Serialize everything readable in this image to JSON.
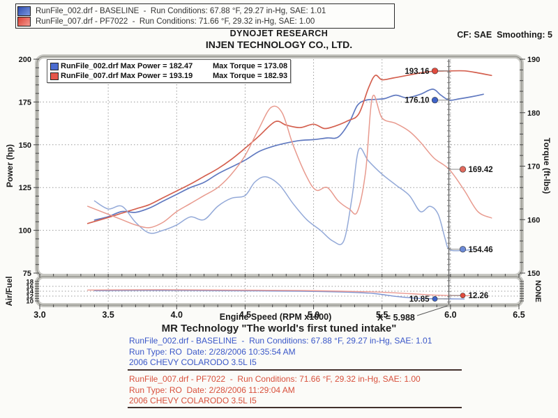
{
  "titles": {
    "research": "DYNOJET RESEARCH",
    "company": "INJEN TECHNOLOGY CO., LTD.",
    "cf_smoothing": "CF: SAE  Smoothing: 5"
  },
  "top_legend": {
    "runs": [
      {
        "label": "RunFile_002.drf - BASELINE  -  Run Conditions: 67.88 °F, 29.27 in-Hg, SAE: 1.01",
        "swatch_from": "#2f4cae",
        "swatch_to": "#7a97e0"
      },
      {
        "label": "RunFile_007.drf - PF7022  -  Run Conditions: 71.66 °F, 29.32 in-Hg, SAE: 1.00",
        "swatch_from": "#d93f33",
        "swatch_to": "#f59a93"
      }
    ]
  },
  "max_legend": {
    "rows": [
      {
        "file_and_power": "RunFile_002.drf Max Power = 182.47",
        "torque": "Max Torque = 173.08",
        "swatch": "#4a6bd0"
      },
      {
        "file_and_power": "RunFile_007.drf Max Power = 193.19",
        "torque": "Max Torque = 182.93",
        "swatch": "#e5564a"
      }
    ]
  },
  "footer": {
    "tagline": "MR Technology \"The world's first tuned intake\"",
    "xlabel": "Engine Speed (RPM x1000)",
    "blocks": [
      {
        "id": "baseline-block",
        "color": "#3a57c8",
        "lines": [
          "RunFile_002.drf - BASELINE  -  Run Conditions: 67.88 °F, 29.27 in-Hg, SAE: 1.01",
          "Run Type: RO  Date: 2/28/2006 10:35:54 AM",
          "2006 CHEVY COLARODO 3.5L I5"
        ]
      },
      {
        "id": "pf7022-block",
        "color": "#d8503c",
        "lines": [
          "RunFile_007.drf - PF7022  -  Run Conditions: 71.66 °F, 29.32 in-Hg, SAE: 1.00",
          "Run Type: RO  Date: 2/28/2006 11:29:04 AM",
          "2006 CHEVY COLARODO 3.5L I5"
        ]
      }
    ]
  },
  "chart_data": {
    "type": "line",
    "grid": true,
    "axes": {
      "x": {
        "label": "Engine Speed (RPM x1000)",
        "min": 3.0,
        "max": 6.5,
        "major": 0.5,
        "minor": 0.1,
        "tick_labels": [
          "3.0",
          "3.5",
          "4.0",
          "4.5",
          "5.0",
          "5.5",
          "6.0",
          "6.5"
        ]
      },
      "power": {
        "label": "Power (hp)",
        "min": 75,
        "max": 200,
        "major": 25,
        "minor": 5,
        "tick_labels": [
          "75",
          "100",
          "125",
          "150",
          "175",
          "200"
        ]
      },
      "torque": {
        "label": "Torque (ft-lbs)",
        "min": 150,
        "max": 190,
        "major": 10,
        "minor": 2,
        "tick_labels": [
          "150",
          "160",
          "170",
          "180",
          "190"
        ]
      },
      "af": {
        "label": "Air/Fuel",
        "right_label": "NONE",
        "min": 10,
        "max": 18,
        "major": 2,
        "minor": 1,
        "tick_labels": [
          "10",
          "12",
          "14",
          "16",
          "18"
        ]
      }
    },
    "series": [
      {
        "name": "power-baseline",
        "axis": "power",
        "color": "#6079c0",
        "points": [
          [
            3.4,
            106
          ],
          [
            3.5,
            108
          ],
          [
            3.6,
            111
          ],
          [
            3.7,
            110.5
          ],
          [
            3.8,
            113
          ],
          [
            3.9,
            117
          ],
          [
            4.0,
            121
          ],
          [
            4.1,
            125
          ],
          [
            4.2,
            128
          ],
          [
            4.3,
            133
          ],
          [
            4.4,
            137
          ],
          [
            4.5,
            141
          ],
          [
            4.6,
            146
          ],
          [
            4.7,
            149
          ],
          [
            4.8,
            151
          ],
          [
            4.9,
            152.5
          ],
          [
            5.0,
            153
          ],
          [
            5.1,
            154
          ],
          [
            5.18,
            154.5
          ],
          [
            5.26,
            163
          ],
          [
            5.32,
            173
          ],
          [
            5.38,
            176
          ],
          [
            5.45,
            176.5
          ],
          [
            5.52,
            177
          ],
          [
            5.6,
            179
          ],
          [
            5.68,
            177.5
          ],
          [
            5.78,
            179.5
          ],
          [
            5.87,
            182.5
          ],
          [
            5.93,
            179
          ],
          [
            5.99,
            176.1
          ],
          [
            6.06,
            176.8
          ],
          [
            6.15,
            178
          ],
          [
            6.24,
            179.5
          ]
        ]
      },
      {
        "name": "power-pf7022",
        "axis": "power",
        "color": "#d4604f",
        "points": [
          [
            3.35,
            104
          ],
          [
            3.5,
            107.5
          ],
          [
            3.6,
            110
          ],
          [
            3.7,
            112.5
          ],
          [
            3.8,
            115
          ],
          [
            3.9,
            119
          ],
          [
            4.0,
            123
          ],
          [
            4.1,
            127
          ],
          [
            4.2,
            131.5
          ],
          [
            4.3,
            136
          ],
          [
            4.4,
            141.5
          ],
          [
            4.5,
            148
          ],
          [
            4.6,
            155
          ],
          [
            4.72,
            163.5
          ],
          [
            4.8,
            161.5
          ],
          [
            4.9,
            160
          ],
          [
            5.0,
            162
          ],
          [
            5.08,
            159.5
          ],
          [
            5.16,
            161
          ],
          [
            5.25,
            164
          ],
          [
            5.33,
            168
          ],
          [
            5.4,
            183
          ],
          [
            5.45,
            190.5
          ],
          [
            5.5,
            188
          ],
          [
            5.58,
            189
          ],
          [
            5.68,
            190.5
          ],
          [
            5.78,
            192
          ],
          [
            5.88,
            193
          ],
          [
            5.99,
            193.16
          ],
          [
            6.1,
            193.19
          ],
          [
            6.2,
            192
          ],
          [
            6.3,
            190.5
          ]
        ]
      },
      {
        "name": "torque-baseline",
        "axis": "torque",
        "color": "#93a9d8",
        "points": [
          [
            3.4,
            163.5
          ],
          [
            3.5,
            162
          ],
          [
            3.6,
            162.5
          ],
          [
            3.7,
            159.5
          ],
          [
            3.8,
            157.5
          ],
          [
            3.9,
            158
          ],
          [
            4.0,
            159
          ],
          [
            4.1,
            160.5
          ],
          [
            4.2,
            160
          ],
          [
            4.3,
            162.5
          ],
          [
            4.4,
            164
          ],
          [
            4.5,
            164.5
          ],
          [
            4.57,
            167
          ],
          [
            4.65,
            168
          ],
          [
            4.75,
            166.5
          ],
          [
            4.85,
            163
          ],
          [
            4.95,
            160
          ],
          [
            5.05,
            158
          ],
          [
            5.14,
            156
          ],
          [
            5.22,
            156
          ],
          [
            5.28,
            164
          ],
          [
            5.33,
            173.08
          ],
          [
            5.4,
            171
          ],
          [
            5.5,
            168.5
          ],
          [
            5.6,
            166.5
          ],
          [
            5.7,
            164.5
          ],
          [
            5.78,
            161.5
          ],
          [
            5.85,
            162.5
          ],
          [
            5.91,
            161
          ],
          [
            5.96,
            156.5
          ],
          [
            5.99,
            154.46
          ],
          [
            6.07,
            154.2
          ],
          [
            6.16,
            154.4
          ]
        ]
      },
      {
        "name": "torque-pf7022",
        "axis": "torque",
        "color": "#e89a8e",
        "points": [
          [
            3.35,
            162.5
          ],
          [
            3.5,
            161
          ],
          [
            3.6,
            160
          ],
          [
            3.7,
            159
          ],
          [
            3.8,
            158.5
          ],
          [
            3.9,
            159.5
          ],
          [
            4.0,
            161.5
          ],
          [
            4.1,
            163
          ],
          [
            4.2,
            164.5
          ],
          [
            4.3,
            166
          ],
          [
            4.4,
            168.5
          ],
          [
            4.5,
            172
          ],
          [
            4.6,
            177
          ],
          [
            4.69,
            181
          ],
          [
            4.77,
            180
          ],
          [
            4.85,
            174
          ],
          [
            4.95,
            168
          ],
          [
            5.02,
            165.5
          ],
          [
            5.1,
            166
          ],
          [
            5.18,
            163.5
          ],
          [
            5.26,
            162
          ],
          [
            5.32,
            161.5
          ],
          [
            5.38,
            169
          ],
          [
            5.43,
            182.93
          ],
          [
            5.5,
            179
          ],
          [
            5.6,
            178
          ],
          [
            5.7,
            176.5
          ],
          [
            5.78,
            174.5
          ],
          [
            5.88,
            171.5
          ],
          [
            5.99,
            169.42
          ],
          [
            6.1,
            165.5
          ],
          [
            6.2,
            161.5
          ],
          [
            6.3,
            160.3
          ]
        ]
      },
      {
        "name": "af-baseline",
        "axis": "af",
        "color": "#7c93d2",
        "points": [
          [
            3.4,
            14.2
          ],
          [
            3.7,
            14.3
          ],
          [
            4.0,
            14.3
          ],
          [
            4.3,
            14.2
          ],
          [
            4.6,
            14.1
          ],
          [
            4.9,
            14.0
          ],
          [
            5.1,
            13.8
          ],
          [
            5.3,
            13.5
          ],
          [
            5.45,
            13.0
          ],
          [
            5.6,
            11.9
          ],
          [
            5.75,
            11.1
          ],
          [
            5.9,
            10.9
          ],
          [
            5.99,
            10.85
          ],
          [
            6.1,
            10.8
          ]
        ]
      },
      {
        "name": "af-pf7022",
        "axis": "af",
        "color": "#ec9a92",
        "points": [
          [
            3.35,
            14.5
          ],
          [
            3.7,
            14.6
          ],
          [
            4.0,
            14.6
          ],
          [
            4.3,
            14.5
          ],
          [
            4.6,
            14.4
          ],
          [
            4.9,
            14.3
          ],
          [
            5.1,
            14.1
          ],
          [
            5.3,
            13.9
          ],
          [
            5.5,
            13.6
          ],
          [
            5.7,
            13.0
          ],
          [
            5.85,
            12.5
          ],
          [
            5.99,
            12.26
          ],
          [
            6.15,
            12.2
          ]
        ]
      }
    ],
    "cursor": {
      "x": 5.988,
      "label": "X = 5.988",
      "markers": [
        {
          "name": "pf7022-power-at-cursor",
          "axis": "power",
          "value": 193.16,
          "label": "193.16",
          "color": "#e04b3e",
          "side": "left"
        },
        {
          "name": "baseline-power-at-cursor",
          "axis": "power",
          "value": 176.1,
          "label": "176.10",
          "color": "#3f63c8",
          "side": "left"
        },
        {
          "name": "pf7022-torque-at-cursor",
          "axis": "torque",
          "value": 169.42,
          "label": "169.42",
          "color": "#e06a5e",
          "side": "right"
        },
        {
          "name": "baseline-torque-at-cursor",
          "axis": "torque",
          "value": 154.46,
          "label": "154.46",
          "color": "#6b89d6",
          "side": "right"
        },
        {
          "name": "baseline-af-at-cursor",
          "axis": "af",
          "value": 10.85,
          "label": "10.85",
          "color": "#3f63c8",
          "side": "left"
        },
        {
          "name": "pf7022-af-at-cursor",
          "axis": "af",
          "value": 12.26,
          "label": "12.26",
          "color": "#e04b3e",
          "side": "right"
        }
      ]
    }
  }
}
